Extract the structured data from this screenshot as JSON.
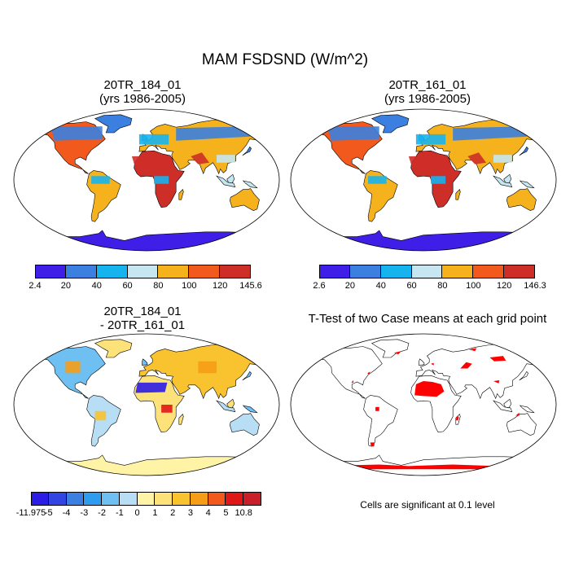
{
  "title": "MAM FSDSND (W/m^2)",
  "panels": [
    {
      "id": "p1",
      "title_line1": "20TR_184_01",
      "title_line2": "(yrs 1986-2005)",
      "labelbar": {
        "ticks": [
          "2.4",
          "20",
          "40",
          "60",
          "80",
          "100",
          "120",
          "145.6"
        ],
        "colors": [
          "#3f1fe8",
          "#3b7fe0",
          "#16b4ef",
          "#c6e6f2",
          "#f6b21c",
          "#f2591d",
          "#ce2e28"
        ]
      }
    },
    {
      "id": "p2",
      "title_line1": "20TR_161_01",
      "title_line2": "(yrs 1986-2005)",
      "labelbar": {
        "ticks": [
          "2.6",
          "20",
          "40",
          "60",
          "80",
          "100",
          "120",
          "146.3"
        ],
        "colors": [
          "#3f1fe8",
          "#3b7fe0",
          "#16b4ef",
          "#c6e6f2",
          "#f6b21c",
          "#f2591d",
          "#ce2e28"
        ]
      }
    },
    {
      "id": "p3",
      "title_line1": "20TR_184_01",
      "title_line2": "- 20TR_161_01",
      "labelbar": {
        "ticks": [
          "-11.975",
          "-5",
          "-4",
          "-3",
          "-2",
          "-1",
          "0",
          "1",
          "2",
          "3",
          "4",
          "5",
          "10.8"
        ],
        "colors": [
          "#2b1ce6",
          "#3244e4",
          "#3b7fe0",
          "#2e9df0",
          "#6fc0f2",
          "#b7def4",
          "#fff3a6",
          "#fde27a",
          "#f9c22f",
          "#f59d16",
          "#f2591d",
          "#e01717",
          "#c81f2a"
        ]
      }
    },
    {
      "id": "p4",
      "title_line1": "T-Test of two Case means at each grid point",
      "note": "Cells are significant at 0.1 level",
      "sig_color": "#ff0000"
    }
  ]
}
